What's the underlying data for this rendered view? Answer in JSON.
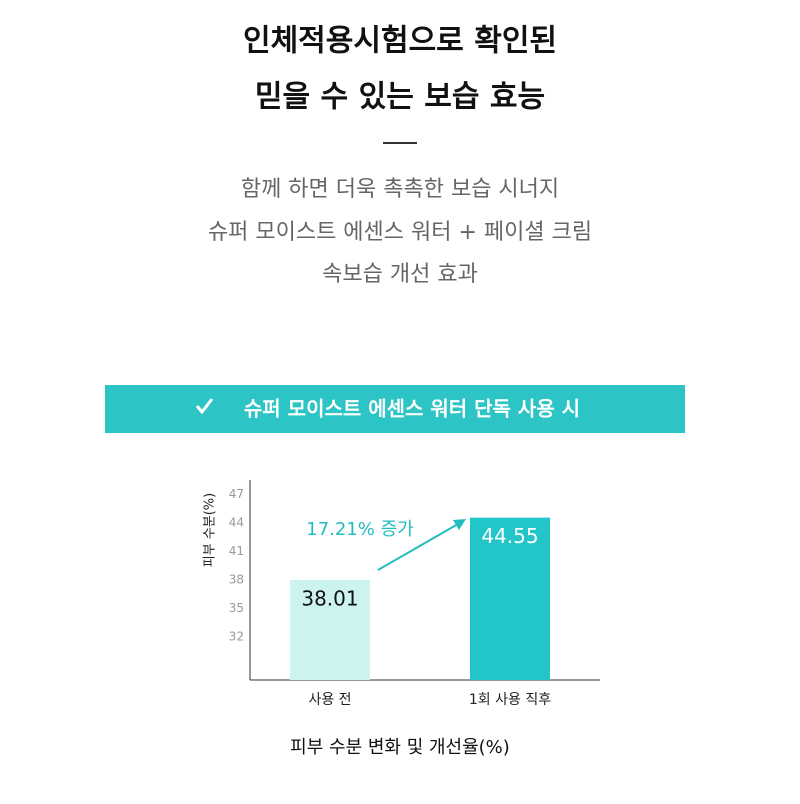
{
  "header": {
    "title_lines": [
      "인체적용시험으로 확인된",
      "믿을 수 있는 보습 효능"
    ],
    "subtitle_lines": [
      "함께 하면 더욱 촉촉한 보습 시너지",
      "슈퍼 모이스트 에센스 워터 + 페이셜 크림",
      "속보습 개선 효과"
    ],
    "banner": "슈퍼 모이스트 에센스 워터 단독 사용 시"
  },
  "chart_data": {
    "type": "bar",
    "title": "피부 수분 변화 및 개선율(%)",
    "y_label": "피부 수분(%)",
    "categories": [
      "사용 전",
      "1회 사용 직후"
    ],
    "values": [
      38.01,
      44.55
    ],
    "colors": [
      "#cdf3f1",
      "#22c5c8"
    ],
    "annotation": "17.21% 증가",
    "ylim": [
      27.5,
      48.5
    ],
    "yticks": [
      32,
      35,
      38,
      41,
      44,
      47
    ],
    "grid": false
  }
}
